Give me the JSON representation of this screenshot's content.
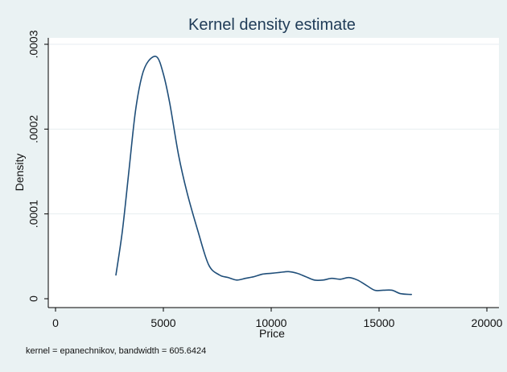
{
  "chart_data": {
    "type": "line",
    "title": "Kernel density estimate",
    "xlabel": "Price",
    "ylabel": "Density",
    "note": "kernel = epanechnikov, bandwidth = 605.6424",
    "xlim": [
      0,
      20000
    ],
    "ylim": [
      0,
      0.0003
    ],
    "x_ticks": [
      0,
      5000,
      10000,
      15000,
      20000
    ],
    "x_tick_labels": [
      "0",
      "5000",
      "10000",
      "15000",
      "20000"
    ],
    "y_ticks": [
      0,
      0.0001,
      0.0002,
      0.0003
    ],
    "y_tick_labels": [
      "0",
      ".0001",
      ".0002",
      ".0003"
    ],
    "grid": true,
    "colors": {
      "background": "#eaf2f3",
      "plot_bg": "#ffffff",
      "line": "#1f4e79",
      "gridline": "#e7eef0",
      "title": "#1f3b57"
    },
    "series": [
      {
        "x": [
          2800,
          3100,
          3400,
          3700,
          4000,
          4300,
          4700,
          5000,
          5300,
          5700,
          6100,
          6600,
          7100,
          7600,
          8000,
          8400,
          8800,
          9200,
          9600,
          10000,
          10400,
          10800,
          11200,
          11600,
          12000,
          12400,
          12800,
          13200,
          13600,
          14000,
          14400,
          14800,
          15200,
          15600,
          16000,
          16500
        ],
        "y": [
          2.8e-05,
          8e-05,
          0.00015,
          0.00022,
          0.000262,
          0.00028,
          0.000285,
          0.000265,
          0.00023,
          0.00017,
          0.000125,
          8e-05,
          4e-05,
          2.8e-05,
          2.5e-05,
          2.2e-05,
          2.4e-05,
          2.6e-05,
          2.9e-05,
          3e-05,
          3.1e-05,
          3.2e-05,
          3e-05,
          2.6e-05,
          2.2e-05,
          2.2e-05,
          2.4e-05,
          2.3e-05,
          2.5e-05,
          2.2e-05,
          1.6e-05,
          1e-05,
          1e-05,
          1e-05,
          6e-06,
          5e-06
        ]
      }
    ]
  }
}
